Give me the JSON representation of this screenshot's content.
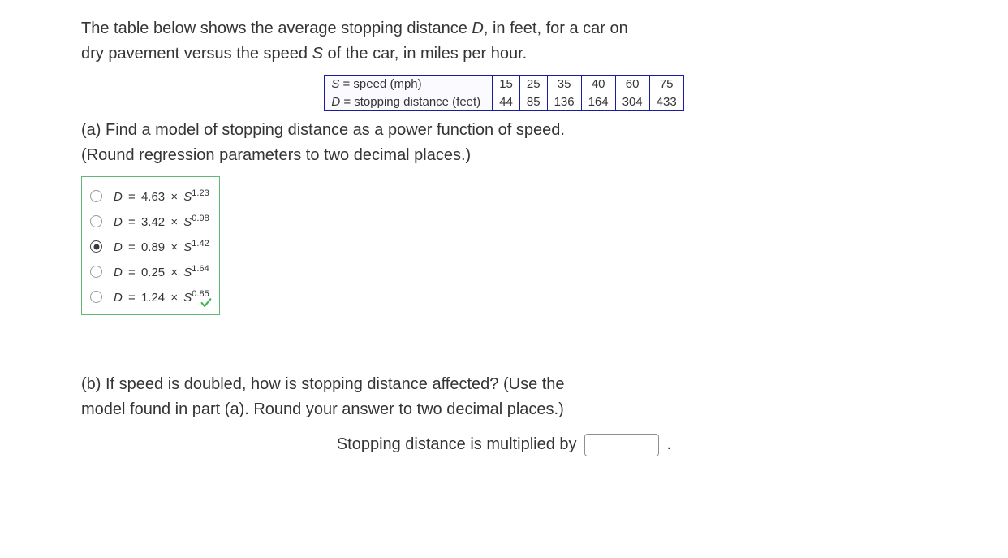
{
  "intro": {
    "line1a": "The table below shows the average stopping distance ",
    "var1": "D",
    "line1b": ", in feet, for a car on",
    "line2a": "dry pavement versus the speed ",
    "var2": "S",
    "line2b": " of the car, in miles per hour."
  },
  "table": {
    "row1_label_html": "S = speed (mph)",
    "row2_label_html": "D = stopping distance (feet)",
    "row1_label_var": "S",
    "row1_label_rest": " = speed (mph)",
    "row2_label_var": "D",
    "row2_label_rest": " = stopping distance (feet)",
    "speeds": [
      "15",
      "25",
      "35",
      "40",
      "60",
      "75"
    ],
    "distances": [
      "44",
      "85",
      "136",
      "164",
      "304",
      "433"
    ],
    "border_color": "#1b1b9e"
  },
  "part_a": {
    "line1": "(a) Find a model of stopping distance as a power function of speed.",
    "line2": "(Round regression parameters to two decimal places.)"
  },
  "choices": {
    "box_border": "#34a853",
    "selected_index": 2,
    "items": [
      {
        "coef": "4.63",
        "exp": "1.23"
      },
      {
        "coef": "3.42",
        "exp": "0.98"
      },
      {
        "coef": "0.89",
        "exp": "1.42"
      },
      {
        "coef": "0.25",
        "exp": "1.64"
      },
      {
        "coef": "1.24",
        "exp": "0.85"
      }
    ],
    "var_d": "D",
    "var_s": "S",
    "eq": " = ",
    "times": " × ",
    "check_color": "#3fb24a"
  },
  "part_b": {
    "line1": "(b) If speed is doubled, how is stopping distance affected? (Use the",
    "line2": "model found in part (a). Round your answer to two decimal places.)",
    "answer_label": "Stopping distance is multiplied by ",
    "period": "."
  }
}
